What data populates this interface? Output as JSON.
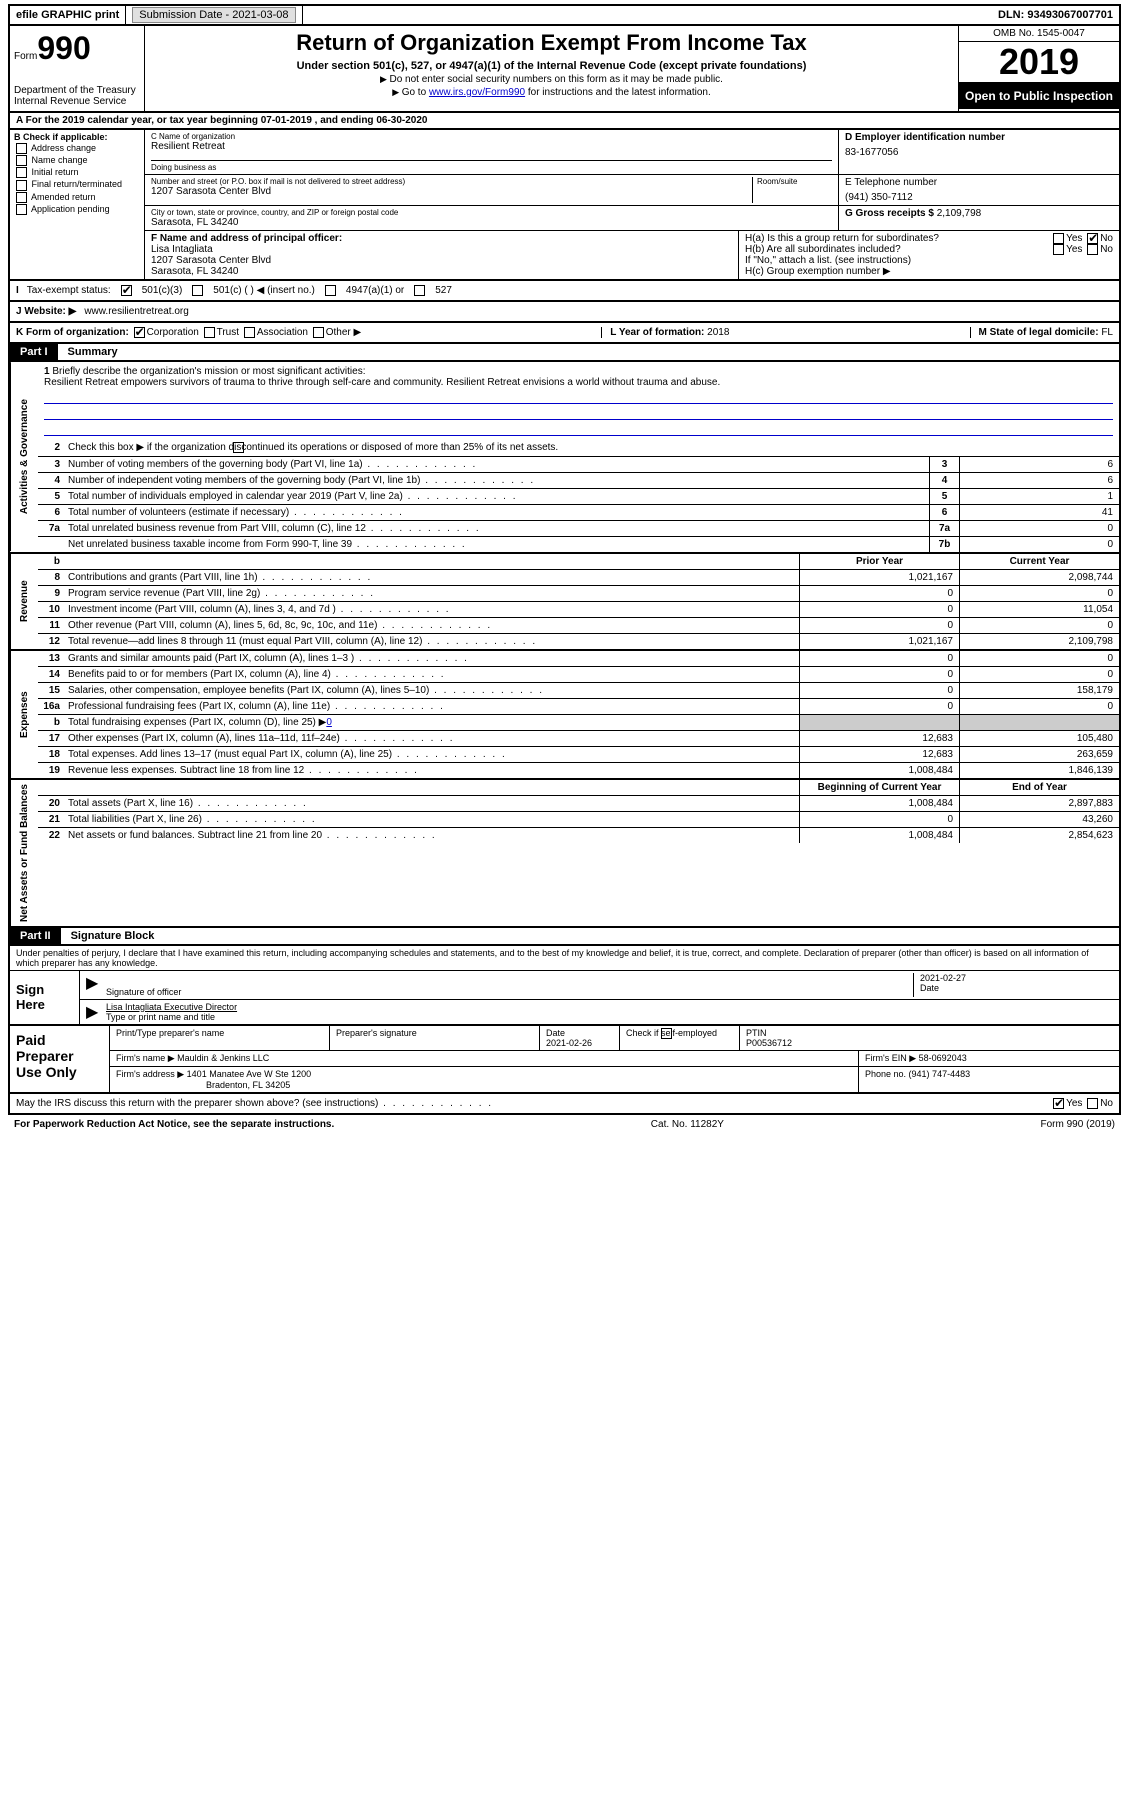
{
  "topbar": {
    "efile": "efile GRAPHIC print",
    "sub_label": "Submission Date - ",
    "sub_date": "2021-03-08",
    "dln_label": "DLN: ",
    "dln": "93493067007701"
  },
  "header": {
    "form_word": "Form",
    "form_num": "990",
    "dept1": "Department of the Treasury",
    "dept2": "Internal Revenue Service",
    "title": "Return of Organization Exempt From Income Tax",
    "subtitle": "Under section 501(c), 527, or 4947(a)(1) of the Internal Revenue Code (except private foundations)",
    "note1": "Do not enter social security numbers on this form as it may be made public.",
    "note2_pre": "Go to ",
    "note2_link": "www.irs.gov/Form990",
    "note2_post": " for instructions and the latest information.",
    "omb": "OMB No. 1545-0047",
    "year": "2019",
    "open": "Open to Public Inspection"
  },
  "row_a": "A For the 2019 calendar year, or tax year beginning 07-01-2019    , and ending 06-30-2020",
  "col_b": {
    "title": "B Check if applicable:",
    "opts": [
      "Address change",
      "Name change",
      "Initial return",
      "Final return/terminated",
      "Amended return",
      "Application pending"
    ]
  },
  "block_c": {
    "name_lbl": "C Name of organization",
    "name": "Resilient Retreat",
    "dba_lbl": "Doing business as",
    "dba": "",
    "addr_lbl": "Number and street (or P.O. box if mail is not delivered to street address)",
    "room_lbl": "Room/suite",
    "addr": "1207 Sarasota Center Blvd",
    "city_lbl": "City or town, state or province, country, and ZIP or foreign postal code",
    "city": "Sarasota, FL  34240"
  },
  "block_d": {
    "lbl": "D Employer identification number",
    "val": "83-1677056"
  },
  "block_e": {
    "lbl": "E Telephone number",
    "val": "(941) 350-7112"
  },
  "block_g": {
    "lbl": "G Gross receipts $ ",
    "val": "2,109,798"
  },
  "block_f": {
    "lbl": "F  Name and address of principal officer:",
    "name": "Lisa Intagliata",
    "addr": "1207 Sarasota Center Blvd",
    "city": "Sarasota, FL  34240"
  },
  "block_h": {
    "a": "H(a)  Is this a group return for subordinates?",
    "b": "H(b)  Are all subordinates included?",
    "b_note": "If \"No,\" attach a list. (see instructions)",
    "c": "H(c)  Group exemption number ▶",
    "yes": "Yes",
    "no": "No"
  },
  "row_i": {
    "lbl": "Tax-exempt status:",
    "o1": "501(c)(3)",
    "o2": "501(c) (   ) ◀ (insert no.)",
    "o3": "4947(a)(1) or",
    "o4": "527"
  },
  "row_j": {
    "lbl": "J   Website: ▶",
    "val": "www.resilientretreat.org"
  },
  "row_k": {
    "lbl": "K Form of organization:",
    "o1": "Corporation",
    "o2": "Trust",
    "o3": "Association",
    "o4": "Other ▶",
    "l_lbl": "L Year of formation: ",
    "l_val": "2018",
    "m_lbl": "M State of legal domicile: ",
    "m_val": "FL"
  },
  "part1": {
    "num": "Part I",
    "title": "Summary"
  },
  "vtabs": {
    "ag": "Activities & Governance",
    "rev": "Revenue",
    "exp": "Expenses",
    "na": "Net Assets or Fund Balances"
  },
  "mission": {
    "q": "Briefly describe the organization's mission or most significant activities:",
    "text": "Resilient Retreat empowers survivors of trauma to thrive through self-care and community. Resilient Retreat envisions a world without trauma and abuse."
  },
  "line2": "Check this box ▶       if the organization discontinued its operations or disposed of more than 25% of its net assets.",
  "gov_rows": [
    {
      "n": "3",
      "t": "Number of voting members of the governing body (Part VI, line 1a)",
      "b": "3",
      "v": "6"
    },
    {
      "n": "4",
      "t": "Number of independent voting members of the governing body (Part VI, line 1b)",
      "b": "4",
      "v": "6"
    },
    {
      "n": "5",
      "t": "Total number of individuals employed in calendar year 2019 (Part V, line 2a)",
      "b": "5",
      "v": "1"
    },
    {
      "n": "6",
      "t": "Total number of volunteers (estimate if necessary)",
      "b": "6",
      "v": "41"
    },
    {
      "n": "7a",
      "t": "Total unrelated business revenue from Part VIII, column (C), line 12",
      "b": "7a",
      "v": "0"
    },
    {
      "n": "",
      "t": "Net unrelated business taxable income from Form 990-T, line 39",
      "b": "7b",
      "v": "0"
    }
  ],
  "col_hdrs": {
    "prior": "Prior Year",
    "current": "Current Year",
    "boy": "Beginning of Current Year",
    "eoy": "End of Year"
  },
  "rev_rows": [
    {
      "n": "8",
      "t": "Contributions and grants (Part VIII, line 1h)",
      "p": "1,021,167",
      "c": "2,098,744"
    },
    {
      "n": "9",
      "t": "Program service revenue (Part VIII, line 2g)",
      "p": "0",
      "c": "0"
    },
    {
      "n": "10",
      "t": "Investment income (Part VIII, column (A), lines 3, 4, and 7d )",
      "p": "0",
      "c": "11,054"
    },
    {
      "n": "11",
      "t": "Other revenue (Part VIII, column (A), lines 5, 6d, 8c, 9c, 10c, and 11e)",
      "p": "0",
      "c": "0"
    },
    {
      "n": "12",
      "t": "Total revenue—add lines 8 through 11 (must equal Part VIII, column (A), line 12)",
      "p": "1,021,167",
      "c": "2,109,798"
    }
  ],
  "exp_rows": [
    {
      "n": "13",
      "t": "Grants and similar amounts paid (Part IX, column (A), lines 1–3 )",
      "p": "0",
      "c": "0"
    },
    {
      "n": "14",
      "t": "Benefits paid to or for members (Part IX, column (A), line 4)",
      "p": "0",
      "c": "0"
    },
    {
      "n": "15",
      "t": "Salaries, other compensation, employee benefits (Part IX, column (A), lines 5–10)",
      "p": "0",
      "c": "158,179"
    },
    {
      "n": "16a",
      "t": "Professional fundraising fees (Part IX, column (A), line 11e)",
      "p": "0",
      "c": "0"
    },
    {
      "n": "b",
      "t": "Total fundraising expenses (Part IX, column (D), line 25) ▶",
      "fund": "0",
      "shade": true
    },
    {
      "n": "17",
      "t": "Other expenses (Part IX, column (A), lines 11a–11d, 11f–24e)",
      "p": "12,683",
      "c": "105,480"
    },
    {
      "n": "18",
      "t": "Total expenses. Add lines 13–17 (must equal Part IX, column (A), line 25)",
      "p": "12,683",
      "c": "263,659"
    },
    {
      "n": "19",
      "t": "Revenue less expenses. Subtract line 18 from line 12",
      "p": "1,008,484",
      "c": "1,846,139"
    }
  ],
  "na_rows": [
    {
      "n": "20",
      "t": "Total assets (Part X, line 16)",
      "p": "1,008,484",
      "c": "2,897,883"
    },
    {
      "n": "21",
      "t": "Total liabilities (Part X, line 26)",
      "p": "0",
      "c": "43,260"
    },
    {
      "n": "22",
      "t": "Net assets or fund balances. Subtract line 21 from line 20",
      "p": "1,008,484",
      "c": "2,854,623"
    }
  ],
  "part2": {
    "num": "Part II",
    "title": "Signature Block"
  },
  "sig": {
    "decl": "Under penalties of perjury, I declare that I have examined this return, including accompanying schedules and statements, and to the best of my knowledge and belief, it is true, correct, and complete. Declaration of preparer (other than officer) is based on all information of which preparer has any knowledge.",
    "here": "Sign Here",
    "sig_lbl": "Signature of officer",
    "date_lbl": "Date",
    "date": "2021-02-27",
    "name": "Lisa Intagliata  Executive Director",
    "name_lbl": "Type or print name and title"
  },
  "prep": {
    "title": "Paid Preparer Use Only",
    "h1": "Print/Type preparer's name",
    "h2": "Preparer's signature",
    "h3": "Date",
    "date": "2021-02-26",
    "h4": "Check        if self-employed",
    "h5": "PTIN",
    "ptin": "P00536712",
    "firm_lbl": "Firm's name     ▶",
    "firm": "Mauldin & Jenkins LLC",
    "ein_lbl": "Firm's EIN ▶",
    "ein": "58-0692043",
    "addr_lbl": "Firm's address ▶",
    "addr1": "1401 Manatee Ave W Ste 1200",
    "addr2": "Bradenton, FL  34205",
    "phone_lbl": "Phone no. ",
    "phone": "(941) 747-4483"
  },
  "discuss": "May the IRS discuss this return with the preparer shown above? (see instructions)",
  "footer": {
    "left": "For Paperwork Reduction Act Notice, see the separate instructions.",
    "mid": "Cat. No. 11282Y",
    "right": "Form 990 (2019)"
  }
}
